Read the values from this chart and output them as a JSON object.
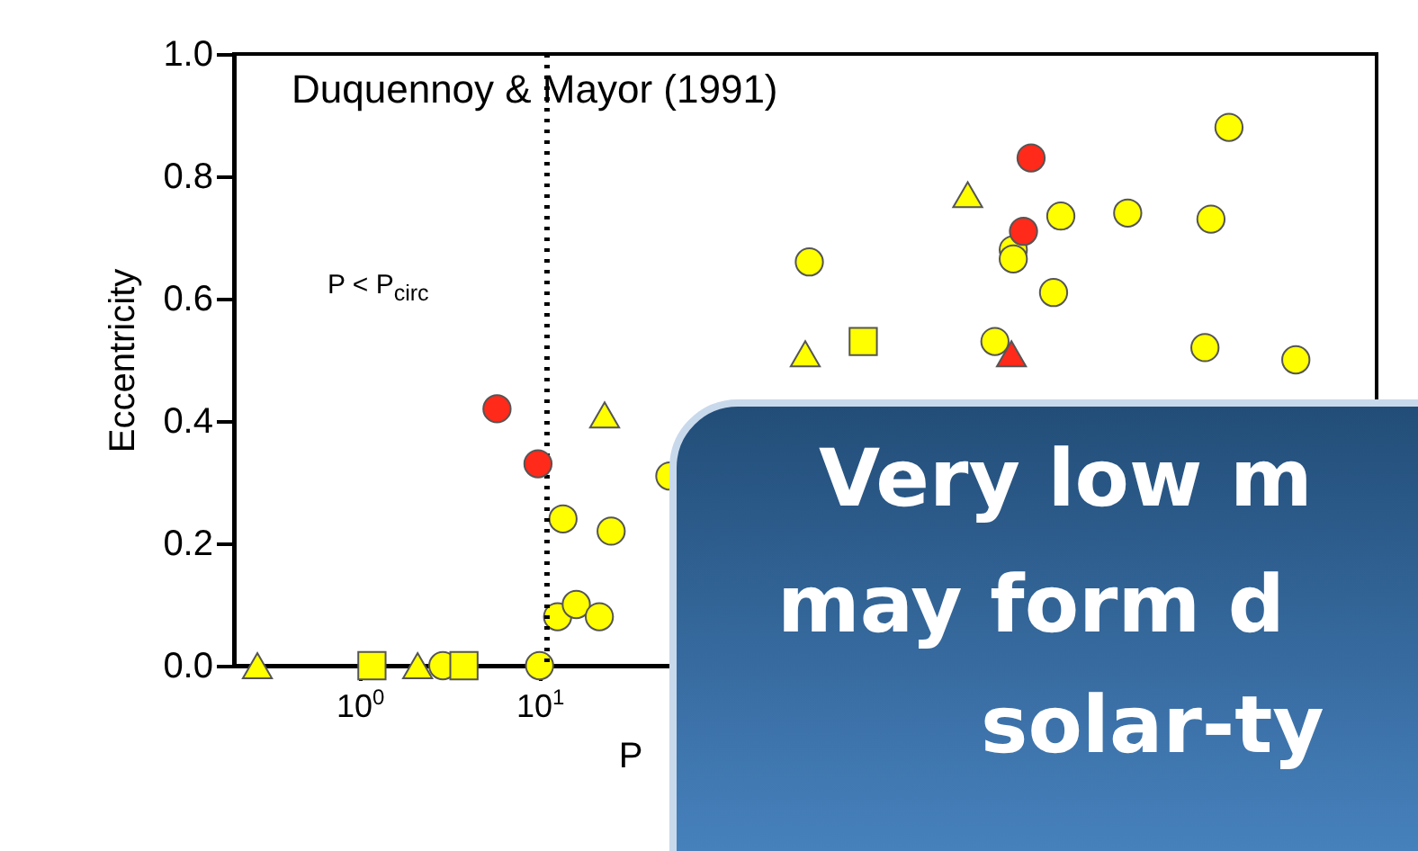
{
  "chart_data": {
    "type": "scatter",
    "xlabel": "P",
    "ylabel": "Eccentricity",
    "log": "x",
    "xlim": [
      0.2,
      450000
    ],
    "ylim": [
      0,
      1.0
    ],
    "xticks": [
      {
        "value": 1,
        "label": "10$^{0}$"
      },
      {
        "value": 10,
        "label": "10$^{1}$"
      }
    ],
    "yticks": [
      {
        "value": 0,
        "label": "0.0"
      },
      {
        "value": 0.2,
        "label": "0.2"
      },
      {
        "value": 0.4,
        "label": "0.4"
      },
      {
        "value": 0.6,
        "label": "0.6"
      },
      {
        "value": 0.8,
        "label": "0.8"
      },
      {
        "value": 1.0,
        "label": "1.0"
      }
    ],
    "grid": false,
    "ref_lines": [
      {
        "axis": "x",
        "value": 11,
        "line_style": "dotted",
        "color": "#000000"
      }
    ],
    "annotations": [
      "Duquennoy & Mayor (1991)",
      "P < P$_{circ}$",
      "Very low m",
      "may form d",
      "solar-ty"
    ],
    "series": [
      {
        "color": "#ffff00",
        "marker": "circle",
        "x": [
          13.5,
          25,
          12.6,
          16,
          21.5,
          53,
          2.9,
          10,
          68000,
          7900,
          18600,
          54000,
          316,
          4300,
          4300,
          7200,
          3400,
          50000,
          160000
        ],
        "values": [
          0.24,
          0.22,
          0.08,
          0.1,
          0.08,
          0.31,
          0,
          0,
          0.88,
          0.735,
          0.74,
          0.73,
          0.66,
          0.68,
          0.665,
          0.61,
          0.53,
          0.52,
          0.5
        ]
      },
      {
        "color": "#ffff00",
        "marker": "triangle",
        "x": [
          23,
          2400,
          0.27,
          2.1,
          300
        ],
        "values": [
          0.41,
          0.77,
          0,
          0,
          0.51
        ]
      },
      {
        "color": "#ffff00",
        "marker": "square",
        "x": [
          1.17,
          3.8,
          630
        ],
        "values": [
          0,
          0,
          0.53
        ]
      },
      {
        "color": "#ff2a1a",
        "marker": "circle",
        "x": [
          5.8,
          9.8,
          5400,
          4900
        ],
        "values": [
          0.42,
          0.33,
          0.83,
          0.71
        ]
      },
      {
        "color": "#ff2a1a",
        "marker": "triangle",
        "x": [
          4200
        ],
        "values": [
          0.51
        ]
      }
    ]
  }
}
